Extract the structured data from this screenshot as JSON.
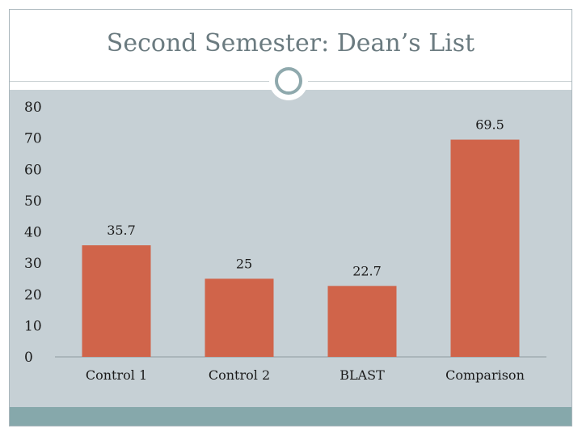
{
  "slide": {
    "title": "Second Semester: Dean’s List"
  },
  "colors": {
    "bar": "#d0644a",
    "plot_background": "#c6d0d5",
    "footer_band": "#86a8ab",
    "ornament": "#8fa9ad",
    "title_text": "#6b7b80"
  },
  "chart_data": {
    "type": "bar",
    "title": "",
    "xlabel": "",
    "ylabel": "",
    "categories": [
      "Control 1",
      "Control 2",
      "BLAST",
      "Comparison"
    ],
    "values": [
      35.7,
      25,
      22.7,
      69.5
    ],
    "data_labels": [
      "35.7",
      "25",
      "22.7",
      "69.5"
    ],
    "ylim": [
      0,
      80
    ],
    "yticks": [
      0,
      10,
      20,
      30,
      40,
      50,
      60,
      70,
      80
    ],
    "grid": false,
    "legend": "none"
  }
}
